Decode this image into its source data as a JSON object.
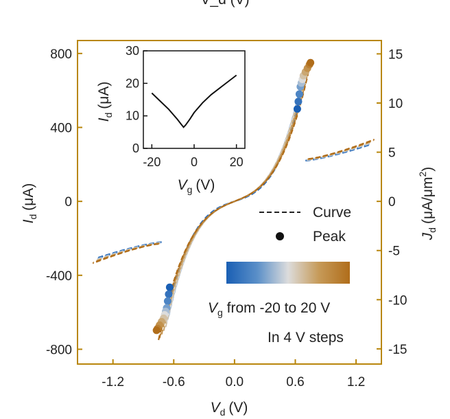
{
  "top_label_fragment": "V_d (V)",
  "chart_data": {
    "type": "line",
    "frame_color": "#b8860b",
    "colormap": [
      "#1a5fb4",
      "#5a8fc8",
      "#dcdcdc",
      "#c69a58",
      "#b06d1a"
    ],
    "main": {
      "xlabel": {
        "sym": "V",
        "sub": "d",
        "unit": "(V)"
      },
      "ylabel_left": {
        "sym": "I",
        "sub": "d",
        "unit": "(μA)"
      },
      "ylabel_right": {
        "sym": "J",
        "sub": "d",
        "unit": "(μA/μm",
        "sup": "2",
        "close": ")"
      },
      "xlim": [
        -1.55,
        1.45
      ],
      "ylim": [
        -880,
        870
      ],
      "x_ticks": [
        "-1.2",
        "-0.6",
        "0.0",
        "0.6",
        "1.2"
      ],
      "x_tick_values": [
        -1.2,
        -0.6,
        0.0,
        0.6,
        1.2
      ],
      "y_left_ticks": [
        "800",
        "400",
        "0",
        "-400",
        "-800"
      ],
      "y_left_values": [
        800,
        400,
        0,
        -400,
        -800
      ],
      "y_right_ticks": [
        "15",
        "10",
        "5",
        "0",
        "-5",
        "-10",
        "-15"
      ],
      "y_right_values": [
        15,
        10,
        5,
        0,
        -5,
        -10,
        -15
      ],
      "right_per_left": 0.0188,
      "vg_values": [
        -20,
        -16,
        -12,
        -8,
        -4,
        0,
        4,
        8,
        12,
        16,
        20
      ],
      "peak_current": [
        500,
        540,
        580,
        620,
        640,
        660,
        680,
        700,
        720,
        740,
        750
      ],
      "peak_voltage": [
        0.62,
        0.63,
        0.64,
        0.65,
        0.66,
        0.67,
        0.68,
        0.7,
        0.72,
        0.74,
        0.75
      ],
      "tail_start_voltage": 0.73,
      "tail_end_voltage": 1.38,
      "tail_start_current": 230,
      "tail_end_current": 335
    },
    "legend": {
      "curve_label": "Curve",
      "peak_label": "Peak",
      "colorbar_label_sym": "V",
      "colorbar_label_sub": "g",
      "colorbar_label_rest": " from -20 to 20 V",
      "steps_label": "In 4 V steps"
    },
    "inset": {
      "xlabel": {
        "sym": "V",
        "sub": "g",
        "unit": "(V)"
      },
      "ylabel": {
        "sym": "I",
        "sub": "d",
        "unit": "(μA)"
      },
      "xlim": [
        -24,
        24
      ],
      "ylim": [
        0,
        30
      ],
      "x_ticks": [
        "-20",
        "0",
        "20"
      ],
      "x_tick_values": [
        -20,
        0,
        20
      ],
      "y_ticks": [
        "30",
        "20",
        "10",
        "0"
      ],
      "y_tick_values": [
        30,
        20,
        10,
        0
      ],
      "x": [
        -20,
        -16,
        -12,
        -8,
        -6,
        -5,
        -4,
        -2,
        0,
        4,
        8,
        12,
        16,
        20
      ],
      "y": [
        17,
        14.5,
        12,
        9,
        7.3,
        6.5,
        7.2,
        9,
        11,
        14,
        16.5,
        18.5,
        20.5,
        22.5
      ]
    }
  }
}
